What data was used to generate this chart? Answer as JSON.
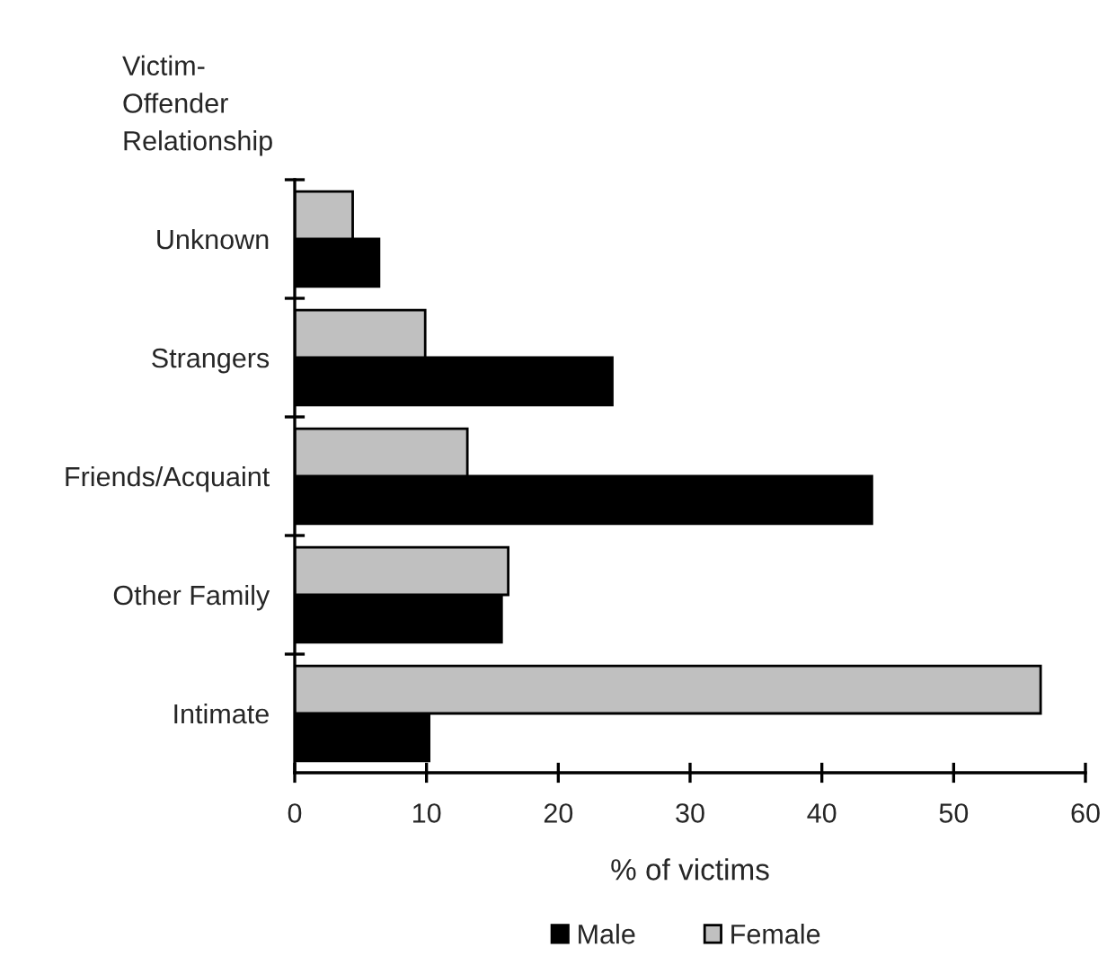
{
  "chart_data": {
    "type": "bar",
    "orientation": "horizontal",
    "ylabel": "Victim-\nOffender\nRelationship",
    "xlabel": "% of victims",
    "categories": [
      "Unknown",
      "Strangers",
      "Friends/Acquaint",
      "Other Family",
      "Intimate"
    ],
    "series": [
      {
        "name": "Male",
        "color": "#000000",
        "values": [
          6.4,
          24.1,
          43.8,
          15.7,
          10.2
        ]
      },
      {
        "name": "Female",
        "color": "#c0c0c0",
        "values": [
          4.4,
          9.9,
          13.1,
          16.2,
          56.6
        ]
      }
    ],
    "xlim": [
      0,
      60
    ],
    "xticks": [
      0,
      10,
      20,
      30,
      40,
      50,
      60
    ],
    "grid": false,
    "legend": "bottom"
  }
}
